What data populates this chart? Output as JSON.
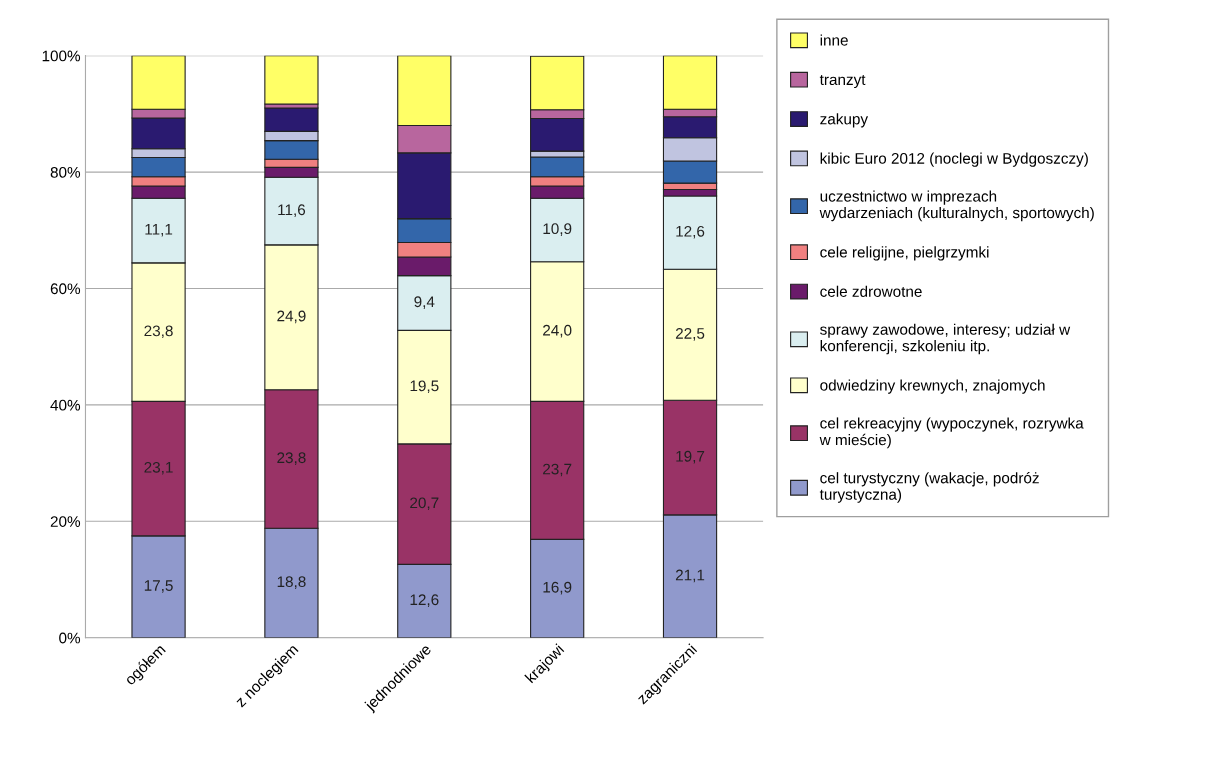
{
  "chart_data": {
    "type": "bar",
    "stacked": true,
    "categories": [
      "ogółem",
      "z noclegiem",
      "jednodniowe",
      "krajowi",
      "zagraniczni"
    ],
    "series": [
      {
        "name": "cel turystyczny (wakacje, podróż\nturystyczna)",
        "color": "#9099cc",
        "values": [
          17.5,
          18.8,
          12.6,
          16.9,
          21.1
        ],
        "value_labels": [
          "17,5",
          "18,8",
          "12,6",
          "16,9",
          "21,1"
        ]
      },
      {
        "name": "cel rekreacyjny (wypoczynek, rozrywka\nw mieście)",
        "color": "#993366",
        "values": [
          23.1,
          23.8,
          20.7,
          23.7,
          19.7
        ],
        "value_labels": [
          "23,1",
          "23,8",
          "20,7",
          "23,7",
          "19,7"
        ]
      },
      {
        "name": "odwiedziny krewnych, znajomych",
        "color": "#ffffcc",
        "values": [
          23.8,
          24.9,
          19.5,
          24.0,
          22.5
        ],
        "value_labels": [
          "23,8",
          "24,9",
          "19,5",
          "24,0",
          "22,5"
        ]
      },
      {
        "name": "sprawy zawodowe, interesy; udział w\nkonferencji, szkoleniu itp.",
        "color": "#daeef0",
        "values": [
          11.1,
          11.6,
          9.4,
          10.9,
          12.6
        ],
        "value_labels": [
          "11,1",
          "11,6",
          "9,4",
          "10,9",
          "12,6"
        ]
      },
      {
        "name": "cele zdrowotne",
        "color": "#6a1b6a",
        "values": [
          2.1,
          1.7,
          3.2,
          2.1,
          1.1
        ]
      },
      {
        "name": "cele religijne, pielgrzymki",
        "color": "#f08080",
        "values": [
          1.6,
          1.4,
          2.5,
          1.6,
          1.1
        ]
      },
      {
        "name": "uczestnictwo w imprezach\nwydarzeniach (kulturalnych, sportowych)",
        "color": "#3366aa",
        "values": [
          3.3,
          3.2,
          4.1,
          3.4,
          3.8
        ]
      },
      {
        "name": "kibic Euro 2012 (noclegi w Bydgoszczy)",
        "color": "#c0c4e0",
        "values": [
          1.5,
          1.6,
          0,
          1.0,
          4.0
        ]
      },
      {
        "name": "zakupy",
        "color": "#2a1a70",
        "values": [
          5.3,
          4.0,
          11.3,
          5.6,
          3.6
        ]
      },
      {
        "name": "tranzyt",
        "color": "#b8669e",
        "values": [
          1.5,
          0.7,
          4.7,
          1.5,
          1.3
        ]
      },
      {
        "name": "inne",
        "color": "#ffff66",
        "values": [
          9.2,
          8.3,
          12.0,
          9.2,
          9.2
        ]
      }
    ],
    "ylim": [
      0,
      100
    ],
    "yticks": [
      {
        "value": 0,
        "label": "0%"
      },
      {
        "value": 20,
        "label": "20%"
      },
      {
        "value": 40,
        "label": "40%"
      },
      {
        "value": 60,
        "label": "60%"
      },
      {
        "value": 80,
        "label": "80%"
      },
      {
        "value": 100,
        "label": "100%"
      }
    ],
    "grid": "y",
    "legend": "right"
  }
}
